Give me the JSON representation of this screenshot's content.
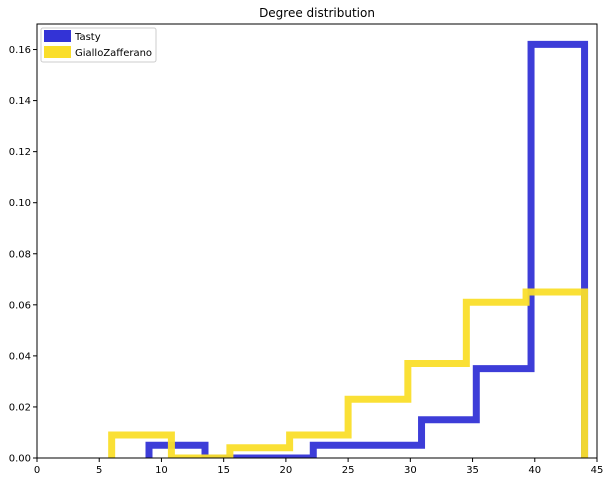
{
  "chart_data": {
    "type": "histogram",
    "title": "Degree distribution",
    "xlabel": "",
    "ylabel": "",
    "xlim": [
      0,
      45
    ],
    "ylim": [
      0,
      0.17
    ],
    "x_ticks": [
      0,
      5,
      10,
      15,
      20,
      25,
      30,
      35,
      40,
      45
    ],
    "y_ticks": [
      0.0,
      0.02,
      0.04,
      0.06,
      0.08,
      0.1,
      0.12,
      0.14,
      0.16
    ],
    "y_tick_labels": [
      "0.00",
      "0.02",
      "0.04",
      "0.06",
      "0.08",
      "0.10",
      "0.12",
      "0.14",
      "0.16"
    ],
    "grid": false,
    "legend_position": "top-left",
    "series": [
      {
        "name": "Tasty",
        "color": "#3333d6",
        "histtype": "step",
        "bin_edges": [
          9,
          13.5,
          17.8,
          22.2,
          26.6,
          30.9,
          35.3,
          39.7,
          44
        ],
        "values": [
          0.005,
          0.0,
          0.0,
          0.005,
          0.005,
          0.015,
          0.035,
          0.162
        ]
      },
      {
        "name": "GialloZafferano",
        "color": "#fade2a",
        "histtype": "step",
        "bin_edges": [
          6,
          10.8,
          15.5,
          20.3,
          25.0,
          29.8,
          34.5,
          39.3,
          44
        ],
        "values": [
          0.009,
          0.0,
          0.004,
          0.009,
          0.023,
          0.037,
          0.061,
          0.065
        ]
      }
    ]
  }
}
